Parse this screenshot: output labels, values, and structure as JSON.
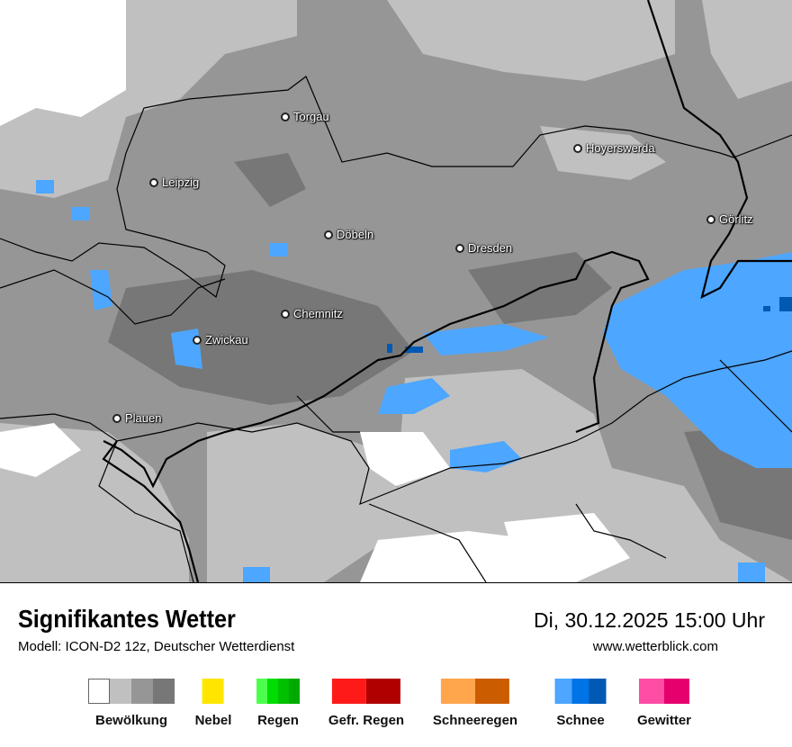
{
  "header": {
    "title": "Signifikantes Wetter",
    "model": "Modell: ICON-D2 12z, Deutscher Wetterdienst",
    "datetime": "Di, 30.12.2025 15:00 Uhr",
    "website": "www.wetterblick.com"
  },
  "cities": [
    {
      "name": "Torgau"
    },
    {
      "name": "Hoyerswerda"
    },
    {
      "name": "Leipzig"
    },
    {
      "name": "Görlitz"
    },
    {
      "name": "Döbeln"
    },
    {
      "name": "Dresden"
    },
    {
      "name": "Chemnitz"
    },
    {
      "name": "Zwickau"
    },
    {
      "name": "Plauen"
    }
  ],
  "legend": [
    {
      "label": "Bewölkung",
      "colors": [
        "#ffffff",
        "#c0c0c0",
        "#969696",
        "#777777"
      ]
    },
    {
      "label": "Nebel",
      "colors": [
        "#ffe600"
      ]
    },
    {
      "label": "Regen",
      "colors": [
        "#4dff4d",
        "#00dd00",
        "#00c000",
        "#00aa00"
      ]
    },
    {
      "label": "Gefr. Regen",
      "colors": [
        "#ff1a1a",
        "#b00000"
      ]
    },
    {
      "label": "Schneeregen",
      "colors": [
        "#ffa64d",
        "#cc5c00"
      ]
    },
    {
      "label": "Schnee",
      "colors": [
        "#4da6ff",
        "#0073e6",
        "#0059b3"
      ]
    },
    {
      "label": "Gewitter",
      "colors": [
        "#ff4da6",
        "#e6006e"
      ]
    }
  ]
}
